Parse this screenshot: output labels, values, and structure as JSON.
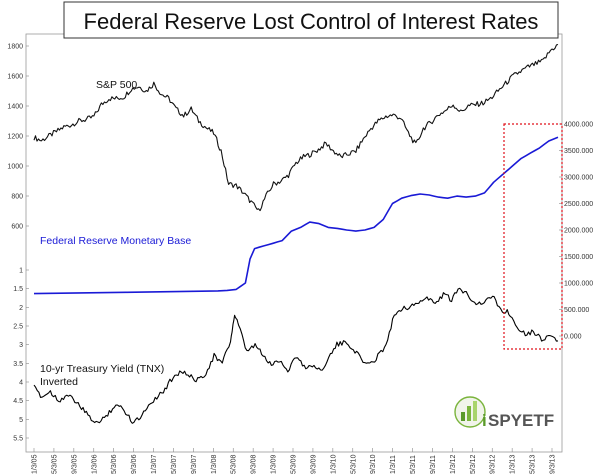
{
  "chart_data": {
    "type": "line",
    "title": "Federal Reserve Lost Control of Interest Rates",
    "left_axis_ticks": [
      "1800",
      "1600",
      "1400",
      "1200",
      "1000",
      "800",
      "600"
    ],
    "left_axis_tnx_ticks": [
      "1",
      "1.5",
      "2",
      "2.5",
      "3",
      "3.5",
      "4",
      "4.5",
      "5",
      "5.5"
    ],
    "right_axis_ticks": [
      "4000.000",
      "3500.000",
      "3000.000",
      "2500.000",
      "2000.000",
      "1500.000",
      "1000.000",
      "500.000",
      "0.000"
    ],
    "x_ticks": [
      "1/3/05",
      "5/3/05",
      "9/3/05",
      "1/3/06",
      "5/3/06",
      "9/3/06",
      "1/3/07",
      "5/3/07",
      "9/3/07",
      "1/3/08",
      "5/3/08",
      "9/3/08",
      "1/3/09",
      "5/3/09",
      "9/3/09",
      "1/3/10",
      "5/3/10",
      "9/3/10",
      "1/3/11",
      "5/3/11",
      "9/3/11",
      "1/3/12",
      "5/3/12",
      "9/3/12",
      "1/3/13",
      "5/3/13",
      "9/3/13"
    ],
    "series": [
      {
        "name": "S&P 500",
        "color": "#111111",
        "axis": "left",
        "points": [
          [
            0,
            1190
          ],
          [
            1,
            1170
          ],
          [
            2,
            1200
          ],
          [
            3,
            1230
          ],
          [
            4,
            1260
          ],
          [
            5,
            1275
          ],
          [
            6,
            1300
          ],
          [
            7,
            1310
          ],
          [
            8,
            1330
          ],
          [
            9,
            1410
          ],
          [
            10,
            1450
          ],
          [
            11,
            1450
          ],
          [
            12,
            1460
          ],
          [
            13,
            1515
          ],
          [
            14,
            1530
          ],
          [
            15,
            1500
          ],
          [
            16,
            1550
          ],
          [
            17,
            1480
          ],
          [
            18,
            1450
          ],
          [
            19,
            1380
          ],
          [
            20,
            1335
          ],
          [
            21,
            1380
          ],
          [
            22,
            1300
          ],
          [
            23,
            1255
          ],
          [
            24,
            1220
          ],
          [
            25,
            1100
          ],
          [
            26,
            880
          ],
          [
            27,
            870
          ],
          [
            28,
            820
          ],
          [
            29,
            760
          ],
          [
            30,
            700
          ],
          [
            31,
            800
          ],
          [
            32,
            880
          ],
          [
            33,
            900
          ],
          [
            34,
            940
          ],
          [
            35,
            1020
          ],
          [
            36,
            1060
          ],
          [
            37,
            1080
          ],
          [
            38,
            1110
          ],
          [
            39,
            1150
          ],
          [
            40,
            1100
          ],
          [
            41,
            1060
          ],
          [
            42,
            1080
          ],
          [
            43,
            1100
          ],
          [
            44,
            1180
          ],
          [
            45,
            1250
          ],
          [
            46,
            1300
          ],
          [
            47,
            1330
          ],
          [
            48,
            1340
          ],
          [
            49,
            1320
          ],
          [
            50,
            1220
          ],
          [
            51,
            1140
          ],
          [
            52,
            1250
          ],
          [
            53,
            1290
          ],
          [
            54,
            1340
          ],
          [
            55,
            1370
          ],
          [
            56,
            1410
          ],
          [
            57,
            1360
          ],
          [
            58,
            1400
          ],
          [
            59,
            1410
          ],
          [
            60,
            1420
          ],
          [
            61,
            1450
          ],
          [
            62,
            1500
          ],
          [
            63,
            1550
          ],
          [
            64,
            1600
          ],
          [
            65,
            1630
          ],
          [
            66,
            1660
          ],
          [
            67,
            1680
          ],
          [
            68,
            1700
          ],
          [
            69,
            1770
          ],
          [
            70,
            1810
          ]
        ]
      },
      {
        "name": "Federal Reserve Monetary Base",
        "color": "#1a1ad6",
        "axis": "right",
        "points": [
          [
            0,
            800
          ],
          [
            20,
            850
          ],
          [
            21,
            860
          ],
          [
            22,
            880
          ],
          [
            23,
            1000
          ],
          [
            23.5,
            1450
          ],
          [
            24,
            1650
          ],
          [
            25,
            1700
          ],
          [
            26,
            1750
          ],
          [
            27,
            1800
          ],
          [
            28,
            1980
          ],
          [
            29,
            2050
          ],
          [
            30,
            2150
          ],
          [
            31,
            2120
          ],
          [
            32,
            2050
          ],
          [
            33,
            2030
          ],
          [
            34,
            2000
          ],
          [
            35,
            1980
          ],
          [
            36,
            2000
          ],
          [
            37,
            2050
          ],
          [
            38,
            2200
          ],
          [
            39,
            2500
          ],
          [
            40,
            2600
          ],
          [
            41,
            2650
          ],
          [
            42,
            2680
          ],
          [
            43,
            2660
          ],
          [
            44,
            2620
          ],
          [
            45,
            2600
          ],
          [
            46,
            2640
          ],
          [
            47,
            2620
          ],
          [
            48,
            2640
          ],
          [
            49,
            2700
          ],
          [
            50,
            2900
          ],
          [
            51,
            3050
          ],
          [
            52,
            3200
          ],
          [
            53,
            3350
          ],
          [
            54,
            3450
          ],
          [
            55,
            3550
          ],
          [
            56,
            3680
          ],
          [
            57,
            3750
          ]
        ]
      },
      {
        "name": "10-yr Treasury Yield (TNX) Inverted",
        "color": "#000000",
        "axis": "left-tnx",
        "points": [
          [
            0,
            4.15
          ],
          [
            1,
            4.4
          ],
          [
            2,
            4.25
          ],
          [
            3,
            4.5
          ],
          [
            4,
            4.35
          ],
          [
            5,
            4.5
          ],
          [
            6,
            4.75
          ],
          [
            7,
            5.0
          ],
          [
            8,
            5.1
          ],
          [
            9,
            4.85
          ],
          [
            10,
            4.6
          ],
          [
            11,
            4.75
          ],
          [
            12,
            5.05
          ],
          [
            13,
            4.95
          ],
          [
            14,
            4.6
          ],
          [
            15,
            4.4
          ],
          [
            16,
            4.2
          ],
          [
            17,
            3.85
          ],
          [
            18,
            3.7
          ],
          [
            19,
            3.85
          ],
          [
            20,
            3.95
          ],
          [
            21,
            3.75
          ],
          [
            22,
            3.3
          ],
          [
            23,
            3.5
          ],
          [
            24,
            2.9
          ],
          [
            24.5,
            2.2
          ],
          [
            25,
            2.5
          ],
          [
            26,
            3.2
          ],
          [
            27,
            3.0
          ],
          [
            28,
            3.3
          ],
          [
            29,
            3.55
          ],
          [
            30,
            3.4
          ],
          [
            31,
            3.7
          ],
          [
            32,
            3.3
          ],
          [
            33,
            3.6
          ],
          [
            34,
            3.55
          ],
          [
            35,
            3.7
          ],
          [
            36,
            3.35
          ],
          [
            37,
            3.0
          ],
          [
            38,
            2.95
          ],
          [
            39,
            3.1
          ],
          [
            40,
            3.4
          ],
          [
            41,
            3.55
          ],
          [
            42,
            3.3
          ],
          [
            43,
            3.0
          ],
          [
            44,
            2.2
          ],
          [
            45,
            2.0
          ],
          [
            46,
            2.0
          ],
          [
            47,
            1.85
          ],
          [
            48,
            1.75
          ],
          [
            49,
            1.9
          ],
          [
            50,
            1.65
          ],
          [
            51,
            1.8
          ],
          [
            52,
            1.5
          ],
          [
            53,
            1.65
          ],
          [
            54,
            1.9
          ],
          [
            55,
            1.85
          ],
          [
            56,
            1.7
          ],
          [
            57,
            2.05
          ],
          [
            58,
            2.15
          ],
          [
            59,
            2.5
          ],
          [
            60,
            2.7
          ],
          [
            61,
            2.65
          ],
          [
            62,
            2.85
          ],
          [
            63,
            2.75
          ],
          [
            64,
            2.9
          ]
        ]
      }
    ],
    "annotations": {
      "sp500": "S&P 500",
      "monetary_base": "Federal Reserve Monetary Base",
      "tnx_line1": "10-yr Treasury Yield (TNX)",
      "tnx_line2": "Inverted"
    },
    "colors": {
      "highlight_box": "#e0101a",
      "monetary_base": "#1a1ad6"
    }
  },
  "logo": {
    "text_i": "i",
    "text_rest": "SPYETF",
    "icon": "chart-bars-logo-icon"
  }
}
